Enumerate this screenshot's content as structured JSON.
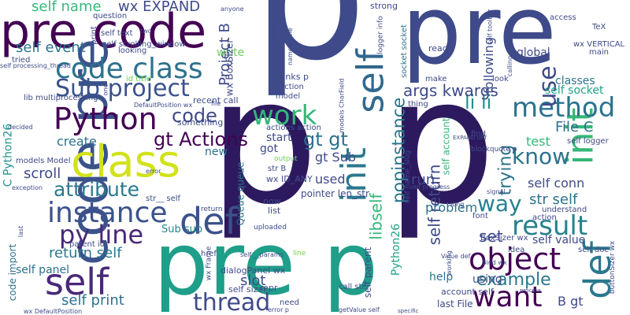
{
  "palette": {
    "background": "#ffffff",
    "dark_purple": "#440154",
    "indigo": "#3b4a8a",
    "blue": "#31688e",
    "teal": "#21918c",
    "green": "#35b779",
    "light_green": "#6ece58",
    "yellow": "#d6e21a"
  },
  "words": [
    {
      "text": "p",
      "color": "#3e4a89"
    },
    {
      "text": "pre",
      "color": "#3e4a89"
    },
    {
      "text": "p",
      "color": "#2d1a5e"
    },
    {
      "text": "p",
      "color": "#2d1a5e"
    },
    {
      "text": "pre p",
      "color": "#1f9e89"
    },
    {
      "text": "pre code",
      "color": "#440154"
    },
    {
      "text": "code pre",
      "color": "#3b528b"
    },
    {
      "text": "class",
      "color": "#d2e21b"
    },
    {
      "text": "code class",
      "color": "#2c728e"
    },
    {
      "text": "Sub project",
      "color": "#3b528b"
    },
    {
      "text": "Python",
      "color": "#440154"
    },
    {
      "text": "instance",
      "color": "#3b528b"
    },
    {
      "text": "attribute",
      "color": "#2a788e"
    },
    {
      "text": "py line",
      "color": "#482878"
    },
    {
      "text": "self",
      "color": "#482878"
    },
    {
      "text": "self",
      "color": "#31688e"
    },
    {
      "text": "init",
      "color": "#2a788e"
    },
    {
      "text": "init",
      "color": "#35b779"
    },
    {
      "text": "def",
      "color": "#3b528b"
    },
    {
      "text": "def",
      "color": "#2a788e"
    },
    {
      "text": "object",
      "color": "#440154"
    },
    {
      "text": "method",
      "color": "#2c728e"
    },
    {
      "text": "result",
      "color": "#26828e"
    },
    {
      "text": "work",
      "color": "#35b779"
    },
    {
      "text": "want",
      "color": "#440154"
    },
    {
      "text": "thread",
      "color": "#3e4a89"
    },
    {
      "text": "use",
      "color": "#3e4a89"
    },
    {
      "text": "know",
      "color": "#2c728e"
    },
    {
      "text": "way",
      "color": "#26828e"
    },
    {
      "text": "gt Actions",
      "color": "#440154"
    },
    {
      "text": "gt gt",
      "color": "#2c728e"
    },
    {
      "text": "code",
      "color": "#3e4a89"
    },
    {
      "text": "li li",
      "color": "#21918c"
    },
    {
      "text": "args kwargs",
      "color": "#3e4a89"
    },
    {
      "text": "popinstance",
      "color": "#2a788e"
    },
    {
      "text": "libself",
      "color": "#35b779"
    },
    {
      "text": "self return",
      "color": "#3e4a89"
    },
    {
      "text": "trying",
      "color": "#2c728e"
    },
    {
      "text": "example",
      "color": "#2a788e"
    },
    {
      "text": "set",
      "color": "#3e4a89"
    },
    {
      "text": "return self",
      "color": "#2a788e"
    },
    {
      "text": "self print",
      "color": "#2c728e"
    },
    {
      "text": "Sub sub",
      "color": "#26828e"
    },
    {
      "text": "scroll",
      "color": "#3e4a89"
    },
    {
      "text": "create",
      "color": "#2c728e"
    },
    {
      "text": "self name",
      "color": "#35b779"
    },
    {
      "text": "wx EXPAND",
      "color": "#3e4a89"
    },
    {
      "text": "self event",
      "color": "#2c728e"
    },
    {
      "text": "Project B",
      "color": "#3e4a89"
    },
    {
      "text": "following",
      "color": "#3e4a89"
    },
    {
      "text": "global",
      "color": "#3e4a89"
    },
    {
      "text": "classes",
      "color": "#2c728e"
    },
    {
      "text": "self socket",
      "color": "#1fa187"
    },
    {
      "text": "File C",
      "color": "#2c728e"
    },
    {
      "text": "test",
      "color": "#35b779"
    },
    {
      "text": "run",
      "color": "#3e4a89"
    },
    {
      "text": "self conn",
      "color": "#3e4a89"
    },
    {
      "text": "str self",
      "color": "#2c728e"
    },
    {
      "text": "self value",
      "color": "#3e4a89"
    },
    {
      "text": "problem",
      "color": "#2c728e"
    },
    {
      "text": "used",
      "color": "#3e4a89"
    },
    {
      "text": "gt Sub",
      "color": "#3e4a89"
    },
    {
      "text": "start",
      "color": "#3e4a89"
    },
    {
      "text": "got",
      "color": "#3e4a89"
    },
    {
      "text": "new",
      "color": "#2c728e"
    },
    {
      "text": "slot",
      "color": "#3e4a89"
    },
    {
      "text": "help",
      "color": "#2c728e"
    },
    {
      "text": "using",
      "color": "#3e4a89"
    },
    {
      "text": "B gt",
      "color": "#3e4a89"
    },
    {
      "text": "write",
      "color": "#6ece58"
    },
    {
      "text": "lib multiprocessing",
      "color": "#3e4a89"
    },
    {
      "text": "C Python26",
      "color": "#21918c"
    },
    {
      "text": "Python26",
      "color": "#1fa187"
    },
    {
      "text": "Queue queue",
      "color": "#2c728e"
    },
    {
      "text": "wx BoxSizer",
      "color": "#3e4a89"
    },
    {
      "text": "self parent",
      "color": "#3e4a89"
    },
    {
      "text": "self panel",
      "color": "#2c728e"
    },
    {
      "text": "dialogPanel wx",
      "color": "#3e4a89"
    },
    {
      "text": "code import",
      "color": "#2c728e"
    },
    {
      "text": "self text",
      "color": "#3e4a89"
    },
    {
      "text": "Thanks p",
      "color": "#3e4a89"
    },
    {
      "text": "now",
      "color": "#3e4a89"
    },
    {
      "text": "list",
      "color": "#3e4a89"
    },
    {
      "text": "pointer len_str",
      "color": "#3e4a89"
    },
    {
      "text": "self account",
      "color": "#35b779"
    },
    {
      "text": "account self",
      "color": "#3e4a89"
    },
    {
      "text": "last File",
      "color": "#3e4a89"
    },
    {
      "text": "wx ID_ANY",
      "color": "#3e4a89"
    },
    {
      "text": "str B",
      "color": "#3e4a89"
    },
    {
      "text": "self sizer",
      "color": "#3e4a89"
    },
    {
      "text": "repr",
      "color": "#3e4a89"
    },
    {
      "text": "recent call",
      "color": "#3e4a89"
    },
    {
      "text": "something",
      "color": "#3e4a89"
    },
    {
      "text": "self logger",
      "color": "#3e4a89"
    },
    {
      "text": "id title",
      "color": "#6ece58"
    },
    {
      "text": "models Model",
      "color": "#3e4a89"
    },
    {
      "text": "parent id",
      "color": "#3e4a89"
    },
    {
      "text": "str__ self",
      "color": "#3e4a89"
    },
    {
      "text": "wx VERTICAL",
      "color": "#3e4a89"
    },
    {
      "text": "main",
      "color": "#3e4a89"
    },
    {
      "text": "TeX",
      "color": "#3e4a89"
    },
    {
      "text": "access",
      "color": "#3e4a89"
    },
    {
      "text": "question",
      "color": "#3e4a89"
    },
    {
      "text": "strong",
      "color": "#3e4a89"
    },
    {
      "text": "read",
      "color": "#3e4a89"
    },
    {
      "text": "make",
      "color": "#3e4a89"
    },
    {
      "text": "look",
      "color": "#3e4a89"
    },
    {
      "text": "find",
      "color": "#3e4a89"
    },
    {
      "text": "self doc",
      "color": "#3e4a89"
    },
    {
      "text": "idea",
      "color": "#3e4a89"
    },
    {
      "text": "font",
      "color": "#3e4a89"
    },
    {
      "text": "href",
      "color": "#3e4a89"
    },
    {
      "text": "need",
      "color": "#3e4a89"
    },
    {
      "text": "call str",
      "color": "#3e4a89"
    },
    {
      "text": "function",
      "color": "#3e4a89"
    },
    {
      "text": "model",
      "color": "#3e4a89"
    },
    {
      "text": "thing",
      "color": "#3e4a89"
    },
    {
      "text": "understand",
      "color": "#3e4a89"
    },
    {
      "text": "action",
      "color": "#3e4a89"
    },
    {
      "text": "tried",
      "color": "#3e4a89"
    },
    {
      "text": "looking",
      "color": "#3e4a89"
    },
    {
      "text": "print",
      "color": "#3e4a89"
    },
    {
      "text": "self scrolling_window",
      "color": "#3e4a89"
    },
    {
      "text": "self processing_thread",
      "color": "#3e4a89"
    },
    {
      "text": "BoxSizer wx",
      "color": "#3e4a89"
    },
    {
      "text": "buttonSizer wx",
      "color": "#3e4a89"
    },
    {
      "text": "models CharField",
      "color": "#3e4a89"
    },
    {
      "text": "socket socket",
      "color": "#2c728e"
    },
    {
      "text": "logger info",
      "color": "#3e4a89"
    },
    {
      "text": "actions action",
      "color": "#3e4a89"
    },
    {
      "text": "self name_slug",
      "color": "#3e4a89"
    },
    {
      "text": "wx Frame",
      "color": "#3e4a89"
    },
    {
      "text": "uploaded",
      "color": "#3e4a89"
    },
    {
      "text": "output",
      "color": "#6ece58"
    },
    {
      "text": "return",
      "color": "#3e4a89"
    },
    {
      "text": "blockquote p",
      "color": "#3e4a89"
    },
    {
      "text": "anyone",
      "color": "#3e4a89"
    },
    {
      "text": "DefaultPosition wx",
      "color": "#3e4a89"
    },
    {
      "text": "wx DefaultPosition",
      "color": "#3e4a89"
    },
    {
      "text": "Value def",
      "color": "#3e4a89"
    },
    {
      "text": "error",
      "color": "#3e4a89"
    },
    {
      "text": "decided",
      "color": "#3e4a89"
    },
    {
      "text": "exception",
      "color": "#3e4a89"
    },
    {
      "text": "last",
      "color": "#3e4a89"
    },
    {
      "text": "one",
      "color": "#3e4a89"
    },
    {
      "text": "file",
      "color": "#3e4a89"
    },
    {
      "text": "two",
      "color": "#3e4a89"
    },
    {
      "text": "server",
      "color": "#3e4a89"
    },
    {
      "text": "name name",
      "color": "#3e4a89"
    },
    {
      "text": "self toolbar",
      "color": "#3e4a89"
    },
    {
      "text": "calling",
      "color": "#3e4a89"
    },
    {
      "text": "line",
      "color": "#6ece58"
    },
    {
      "text": "long",
      "color": "#3e4a89"
    },
    {
      "text": "error p",
      "color": "#3e4a89"
    },
    {
      "text": "working",
      "color": "#3e4a89"
    },
    {
      "text": "Bind wx",
      "color": "#3e4a89"
    },
    {
      "text": "self progress",
      "color": "#3e4a89"
    },
    {
      "text": "self __params",
      "color": "#3e4a89"
    },
    {
      "text": "getValue self",
      "color": "#3e4a89"
    },
    {
      "text": "process",
      "color": "#3e4a89"
    },
    {
      "text": "specific",
      "color": "#3e4a89"
    },
    {
      "text": "signal",
      "color": "#3e4a89"
    },
    {
      "text": "EXPAND self",
      "color": "#3e4a89"
    }
  ]
}
